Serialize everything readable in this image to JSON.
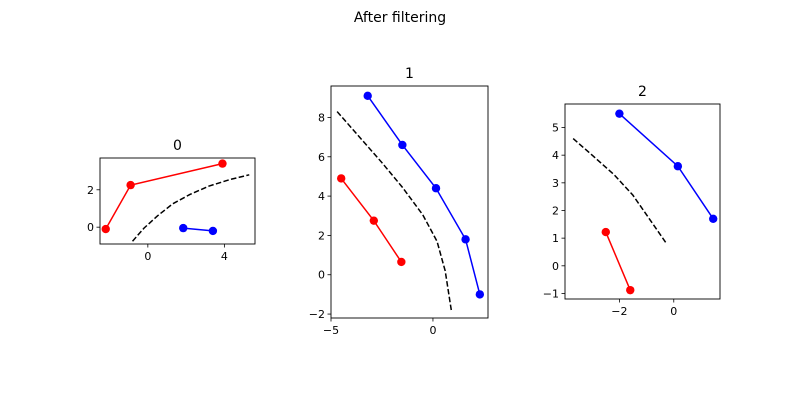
{
  "figure": {
    "suptitle": "After filtering"
  },
  "chart_data": [
    {
      "type": "line",
      "title": "0",
      "xlim": [
        -2.5,
        5.6
      ],
      "ylim": [
        -0.9,
        3.7
      ],
      "xticks": [
        0,
        4
      ],
      "yticks": [
        0,
        2
      ],
      "series": [
        {
          "color": "#ff0000",
          "marker": "circle",
          "linestyle": "solid",
          "points": [
            [
              -2.2,
              -0.1
            ],
            [
              -0.9,
              2.25
            ],
            [
              3.9,
              3.4
            ]
          ]
        },
        {
          "color": "#0000ff",
          "marker": "circle",
          "linestyle": "solid",
          "points": [
            [
              1.85,
              -0.05
            ],
            [
              3.4,
              -0.2
            ]
          ]
        },
        {
          "color": "#000000",
          "marker": "none",
          "linestyle": "dashed",
          "points": [
            [
              -0.8,
              -0.75
            ],
            [
              -0.2,
              -0.05
            ],
            [
              0.5,
              0.6
            ],
            [
              1.3,
              1.25
            ],
            [
              2.2,
              1.75
            ],
            [
              3.2,
              2.2
            ],
            [
              4.3,
              2.55
            ],
            [
              5.3,
              2.8
            ]
          ]
        }
      ]
    },
    {
      "type": "line",
      "title": "1",
      "xlim": [
        -5.0,
        2.7
      ],
      "ylim": [
        -2.2,
        9.6
      ],
      "xticks": [
        -5,
        0
      ],
      "yticks": [
        -2,
        0,
        2,
        4,
        6,
        8
      ],
      "series": [
        {
          "color": "#ff0000",
          "marker": "circle",
          "linestyle": "solid",
          "points": [
            [
              -4.5,
              4.9
            ],
            [
              -2.9,
              2.75
            ],
            [
              -1.55,
              0.65
            ]
          ]
        },
        {
          "color": "#0000ff",
          "marker": "circle",
          "linestyle": "solid",
          "points": [
            [
              -3.2,
              9.1
            ],
            [
              -1.5,
              6.6
            ],
            [
              0.15,
              4.4
            ],
            [
              1.6,
              1.8
            ],
            [
              2.3,
              -1.0
            ]
          ]
        },
        {
          "color": "#000000",
          "marker": "none",
          "linestyle": "dashed",
          "points": [
            [
              -4.7,
              8.3
            ],
            [
              -3.6,
              7.0
            ],
            [
              -2.5,
              5.7
            ],
            [
              -1.5,
              4.45
            ],
            [
              -0.5,
              3.05
            ],
            [
              0.2,
              1.7
            ],
            [
              0.6,
              0.2
            ],
            [
              0.9,
              -1.8
            ]
          ]
        }
      ]
    },
    {
      "type": "line",
      "title": "2",
      "xlim": [
        -4.0,
        1.7
      ],
      "ylim": [
        -1.2,
        5.85
      ],
      "xticks": [
        -2,
        0
      ],
      "yticks": [
        -1,
        0,
        1,
        2,
        3,
        4,
        5
      ],
      "series": [
        {
          "color": "#ff0000",
          "marker": "circle",
          "linestyle": "solid",
          "points": [
            [
              -2.5,
              1.22
            ],
            [
              -1.6,
              -0.88
            ]
          ]
        },
        {
          "color": "#0000ff",
          "marker": "circle",
          "linestyle": "solid",
          "points": [
            [
              -2.0,
              5.5
            ],
            [
              0.15,
              3.6
            ],
            [
              1.45,
              1.7
            ]
          ]
        },
        {
          "color": "#000000",
          "marker": "none",
          "linestyle": "dashed",
          "points": [
            [
              -3.7,
              4.6
            ],
            [
              -3.0,
              4.0
            ],
            [
              -2.2,
              3.3
            ],
            [
              -1.5,
              2.55
            ],
            [
              -0.9,
              1.7
            ],
            [
              -0.3,
              0.85
            ]
          ]
        }
      ]
    }
  ]
}
